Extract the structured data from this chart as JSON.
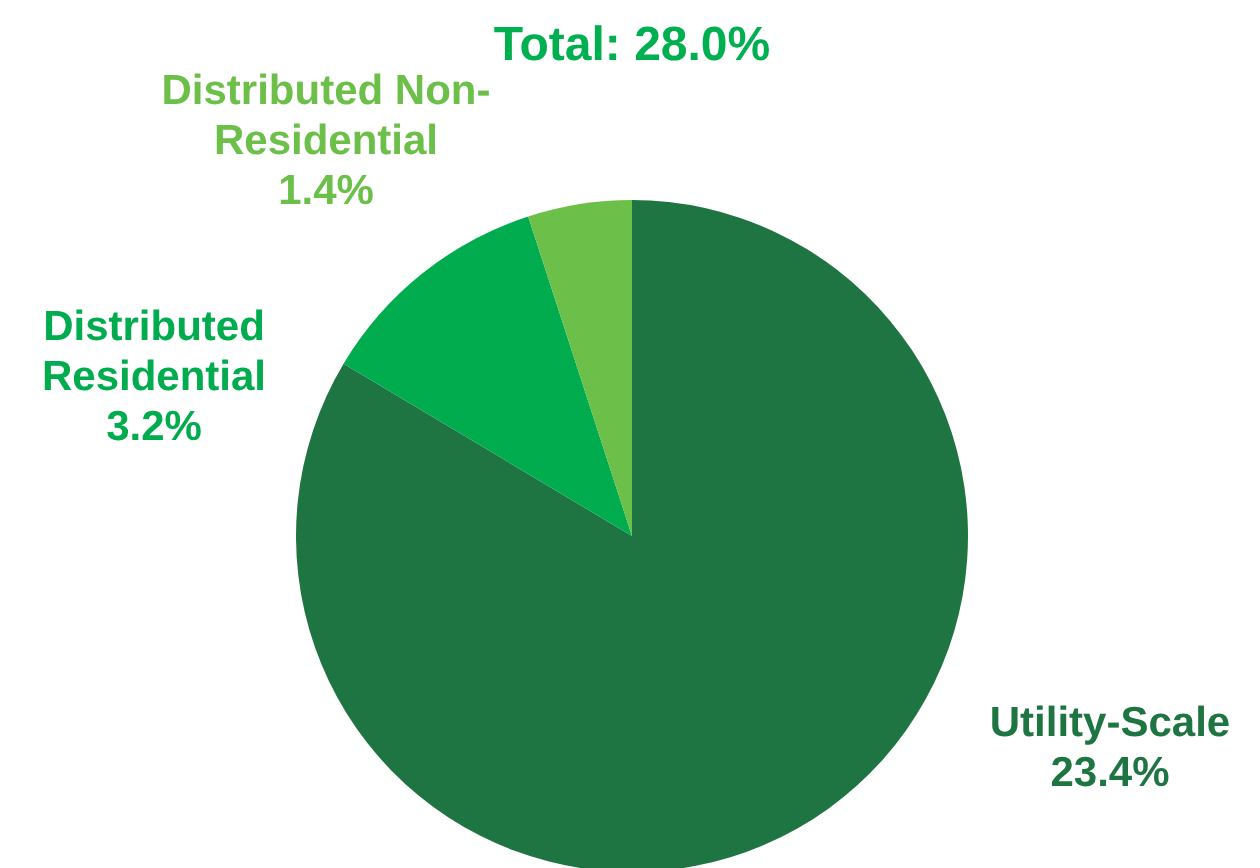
{
  "chart_data": {
    "type": "pie",
    "title": "Total: 28.0%",
    "categories": [
      "Utility-Scale",
      "Distributed Residential",
      "Distributed Non-Residential"
    ],
    "values": [
      23.4,
      3.2,
      1.4
    ],
    "colors": [
      "#1e7542",
      "#00ac4e",
      "#6cc04a"
    ],
    "value_labels": [
      "23.4%",
      "3.2%",
      "1.4%"
    ]
  }
}
